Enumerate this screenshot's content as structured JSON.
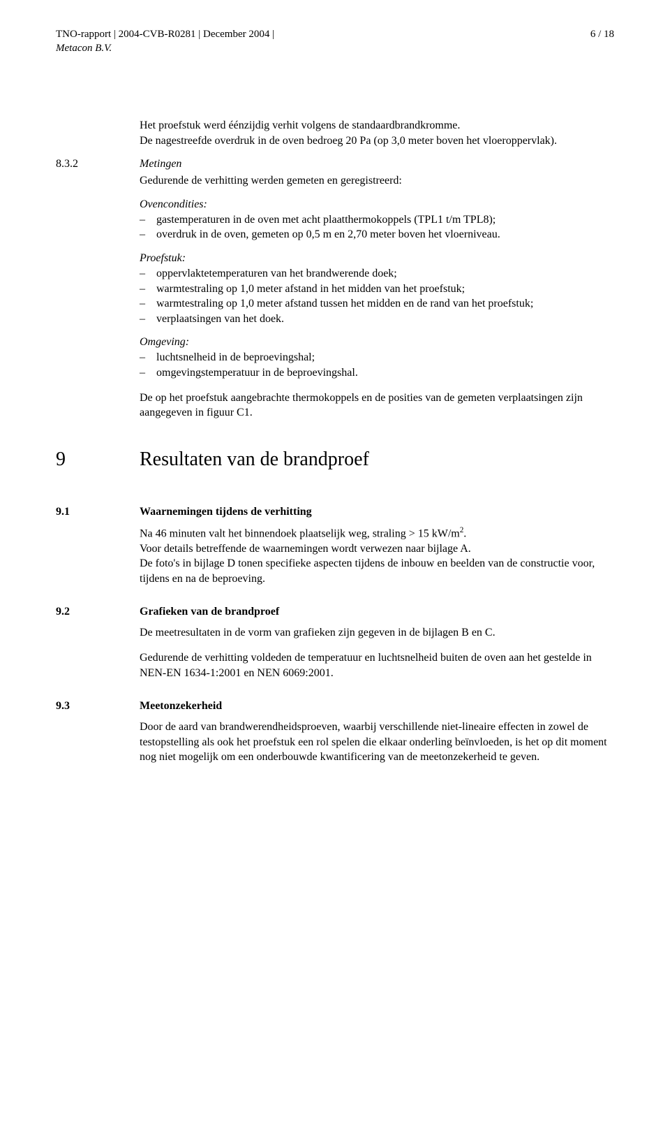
{
  "header": {
    "left_line1": "TNO-rapport | 2004-CVB-R0281 | December 2004 |",
    "left_line2": "Metacon B.V.",
    "page_indicator": "6 / 18"
  },
  "intro": {
    "p1": "Het proefstuk werd éénzijdig verhit volgens de standaardbrandkromme.",
    "p2": "De nagestreefde overdruk in de oven bedroeg 20 Pa (op 3,0 meter boven het vloeroppervlak)."
  },
  "s832": {
    "num": "8.3.2",
    "title": "Metingen",
    "lead": "Gedurende de verhitting werden gemeten en geregistreerd:",
    "ovencondities": {
      "heading": "Ovencondities:",
      "items": [
        "gastemperaturen in de oven met acht plaatthermokoppels (TPL1 t/m TPL8);",
        "overdruk in de oven, gemeten op 0,5 m en 2,70 meter boven het vloerniveau."
      ]
    },
    "proefstuk": {
      "heading": "Proefstuk:",
      "items": [
        "oppervlaktetemperaturen van het brandwerende doek;",
        "warmtestraling op 1,0 meter afstand in het midden van het proefstuk;",
        "warmtestraling op 1,0 meter afstand tussen het midden en de rand van het proefstuk;",
        "verplaatsingen van het doek."
      ]
    },
    "omgeving": {
      "heading": "Omgeving:",
      "items": [
        "luchtsnelheid in de beproevingshal;",
        "omgevingstemperatuur in de beproevingshal."
      ]
    },
    "trailing": "De op het proefstuk aangebrachte thermokoppels en de posities van de gemeten verplaatsingen zijn aangegeven in figuur C1."
  },
  "s9": {
    "num": "9",
    "title": "Resultaten van de brandproef"
  },
  "s91": {
    "num": "9.1",
    "title": "Waarnemingen tijdens de verhitting",
    "p1_pre": "Na 46 minuten valt het binnendoek plaatselijk weg, straling > 15 kW/m",
    "p1_sup": "2",
    "p1_post": ".",
    "p2": "Voor details betreffende de waarnemingen wordt verwezen naar bijlage A.",
    "p3": "De foto's in bijlage D tonen specifieke aspecten tijdens de inbouw en beelden van de constructie voor, tijdens en na de beproeving."
  },
  "s92": {
    "num": "9.2",
    "title": "Grafieken van de brandproef",
    "p1": "De meetresultaten in de vorm van grafieken zijn gegeven in de bijlagen B en C.",
    "p2": "Gedurende de verhitting voldeden de temperatuur en luchtsnelheid buiten de oven aan het gestelde in NEN-EN 1634-1:2001 en NEN 6069:2001."
  },
  "s93": {
    "num": "9.3",
    "title": "Meetonzekerheid",
    "p1": "Door de aard van brandwerendheidsproeven, waarbij verschillende niet-lineaire effecten in zowel de testopstelling als ook het proefstuk een rol spelen die elkaar onderling beïnvloeden, is het op dit moment nog niet mogelijk om een onderbouwde kwantificering van de meetonzekerheid te geven."
  }
}
